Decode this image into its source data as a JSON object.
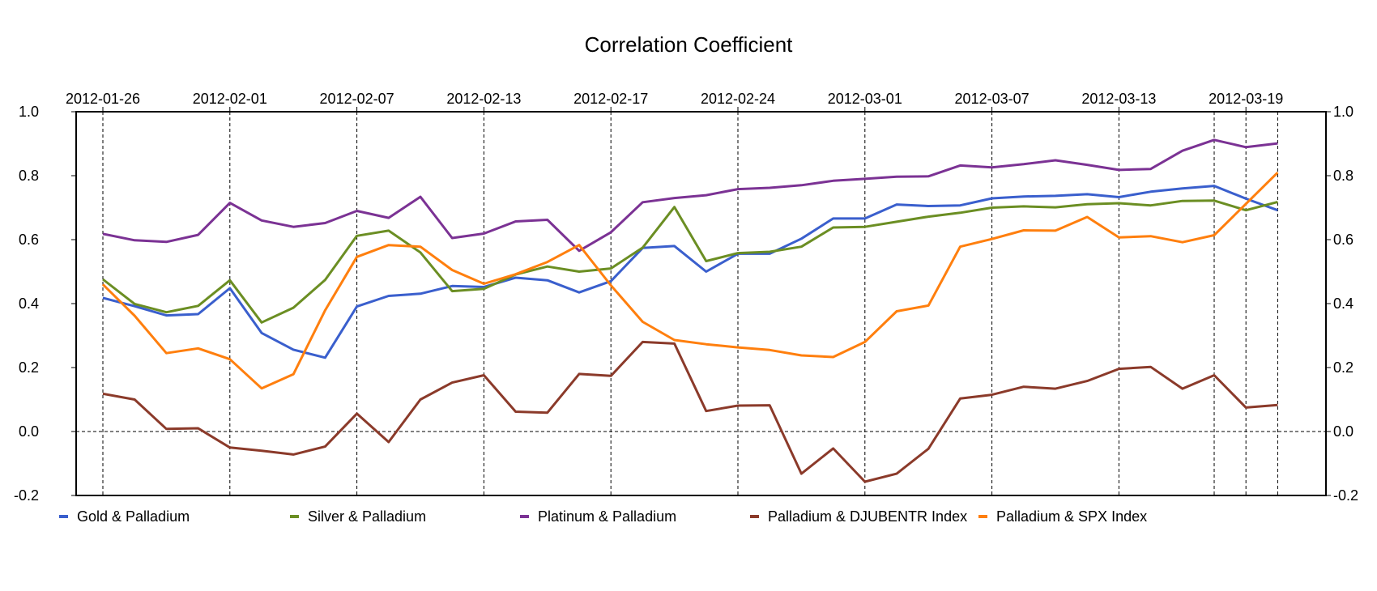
{
  "chart_data": {
    "type": "line",
    "title": "Correlation Coefficient",
    "xlabel": "",
    "ylabel": "",
    "ylim": [
      -0.2,
      1.0
    ],
    "y_ticks": [
      "1.0",
      "0.8",
      "0.6",
      "0.4",
      "0.2",
      "0.0",
      "-0.2"
    ],
    "y_tick_values": [
      1.0,
      0.8,
      0.6,
      0.4,
      0.2,
      0.0,
      -0.2
    ],
    "date_ticks": [
      "2012-01-26",
      "2012-02-01",
      "2012-02-07",
      "2012-02-13",
      "2012-02-17",
      "2012-02-24",
      "2012-03-01",
      "2012-03-07",
      "2012-03-13",
      "2012-03-19"
    ],
    "date_tick_index": [
      0,
      4,
      8,
      12,
      16,
      20,
      24,
      28,
      32,
      36
    ],
    "extra_vline_index": [
      35,
      37
    ],
    "zero_line": true,
    "grid": "vertical dashed",
    "legend_position": "bottom",
    "series": [
      {
        "name": "Gold  &  Palladium",
        "color": "#3a5fcd",
        "values": [
          0.418,
          0.392,
          0.363,
          0.367,
          0.448,
          0.308,
          0.256,
          0.231,
          0.391,
          0.424,
          0.431,
          0.455,
          0.452,
          0.481,
          0.473,
          0.435,
          0.47,
          0.574,
          0.58,
          0.5,
          0.556,
          0.556,
          0.603,
          0.666,
          0.666,
          0.71,
          0.705,
          0.707,
          0.729,
          0.735,
          0.737,
          0.742,
          0.733,
          0.75,
          0.76,
          0.768,
          0.728,
          0.692
        ]
      },
      {
        "name": "Silver  &  Palladium",
        "color": "#6b8e23",
        "values": [
          0.476,
          0.399,
          0.373,
          0.393,
          0.473,
          0.341,
          0.387,
          0.474,
          0.612,
          0.628,
          0.56,
          0.439,
          0.446,
          0.491,
          0.516,
          0.5,
          0.51,
          0.575,
          0.702,
          0.533,
          0.558,
          0.562,
          0.578,
          0.638,
          0.64,
          0.656,
          0.672,
          0.684,
          0.7,
          0.704,
          0.701,
          0.711,
          0.714,
          0.707,
          0.721,
          0.722,
          0.692,
          0.718
        ]
      },
      {
        "name": "Platinum  &  Palladium",
        "color": "#7b3294",
        "values": [
          0.618,
          0.598,
          0.593,
          0.615,
          0.715,
          0.66,
          0.64,
          0.652,
          0.69,
          0.668,
          0.734,
          0.605,
          0.619,
          0.657,
          0.662,
          0.565,
          0.623,
          0.717,
          0.73,
          0.739,
          0.758,
          0.762,
          0.77,
          0.784,
          0.79,
          0.797,
          0.798,
          0.832,
          0.826,
          0.836,
          0.848,
          0.834,
          0.818,
          0.821,
          0.878,
          0.912,
          0.889,
          0.901
        ]
      },
      {
        "name": "Palladium  &  DJUBENTR Index",
        "color": "#8b3a2a",
        "values": [
          0.118,
          0.1,
          0.008,
          0.01,
          -0.05,
          -0.06,
          -0.072,
          -0.047,
          0.056,
          -0.033,
          0.1,
          0.153,
          0.176,
          0.062,
          0.059,
          0.18,
          0.174,
          0.28,
          0.275,
          0.064,
          0.081,
          0.082,
          -0.132,
          -0.053,
          -0.157,
          -0.132,
          -0.054,
          0.103,
          0.115,
          0.14,
          0.134,
          0.158,
          0.196,
          0.202,
          0.134,
          0.176,
          0.075,
          0.083
        ]
      },
      {
        "name": "Palladium  &  SPX Index",
        "color": "#ff7f0e",
        "values": [
          0.46,
          0.362,
          0.245,
          0.26,
          0.226,
          0.135,
          0.179,
          0.379,
          0.546,
          0.583,
          0.578,
          0.505,
          0.462,
          0.492,
          0.53,
          0.583,
          0.457,
          0.343,
          0.286,
          0.273,
          0.263,
          0.255,
          0.238,
          0.233,
          0.28,
          0.376,
          0.394,
          0.578,
          0.602,
          0.629,
          0.628,
          0.671,
          0.607,
          0.611,
          0.592,
          0.614,
          0.712,
          0.81
        ]
      }
    ]
  }
}
